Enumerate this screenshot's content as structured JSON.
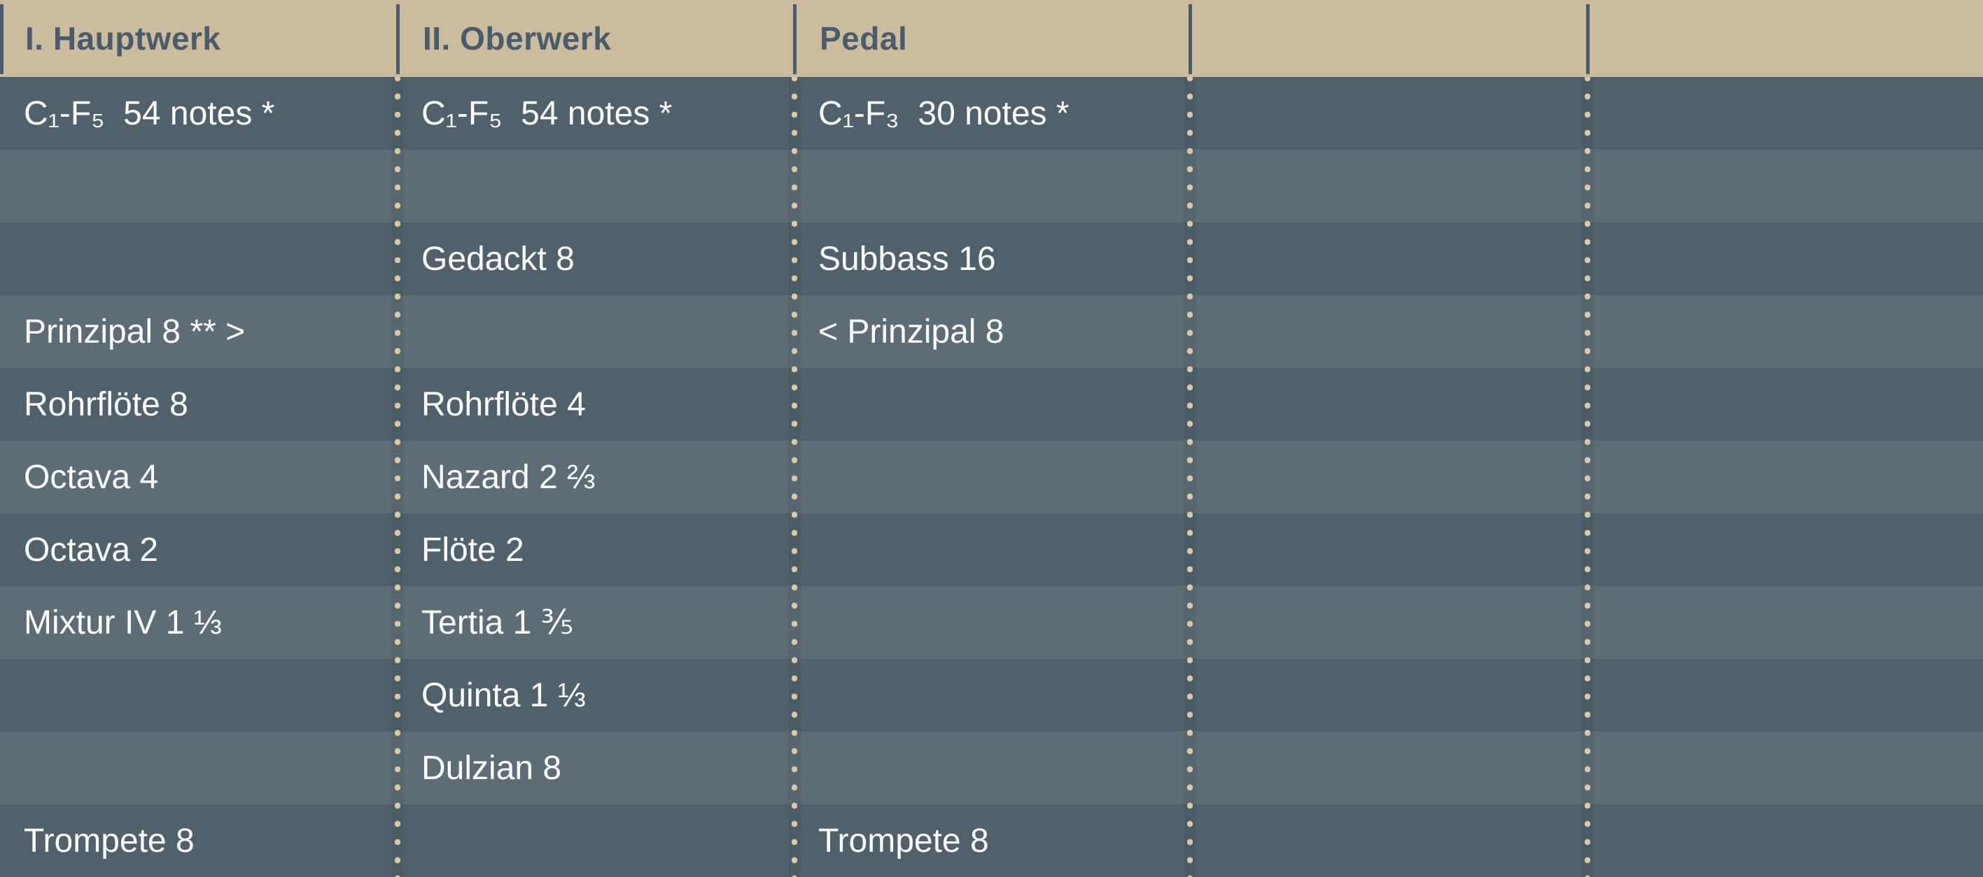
{
  "colors": {
    "header_background": "#cbbc9e",
    "header_text": "#4a5c6b",
    "row_dark": "#51616b",
    "row_light": "#5d6c75",
    "separator_dot": "#d9c8a6",
    "body_text": "#ffffff"
  },
  "table": {
    "columns": [
      {
        "label": "I. Hauptwerk"
      },
      {
        "label": "II. Oberwerk"
      },
      {
        "label": "Pedal"
      },
      {
        "label": ""
      },
      {
        "label": ""
      }
    ],
    "rows": [
      {
        "cells": [
          "C₁-F₅  54 notes *",
          "C₁-F₅  54 notes *",
          "C₁-F₃  30 notes *",
          "",
          ""
        ]
      },
      {
        "cells": [
          "",
          "",
          "",
          "",
          ""
        ]
      },
      {
        "cells": [
          "",
          "Gedackt 8",
          "Subbass 16",
          "",
          ""
        ]
      },
      {
        "cells": [
          "Prinzipal 8 ** >",
          "",
          "< Prinzipal 8",
          "",
          ""
        ]
      },
      {
        "cells": [
          "Rohrflöte 8",
          "Rohrflöte 4",
          "",
          "",
          ""
        ]
      },
      {
        "cells": [
          "Octava 4",
          "Nazard 2 ⅔",
          "",
          "",
          ""
        ]
      },
      {
        "cells": [
          "Octava 2",
          "Flöte 2",
          "",
          "",
          ""
        ]
      },
      {
        "cells": [
          "Mixtur IV 1 ⅓",
          "Tertia 1 ⅗",
          "",
          "",
          ""
        ]
      },
      {
        "cells": [
          "",
          "Quinta 1 ⅓",
          "",
          "",
          ""
        ]
      },
      {
        "cells": [
          "",
          "Dulzian 8",
          "",
          "",
          ""
        ]
      },
      {
        "cells": [
          "Trompete 8",
          "",
          "Trompete 8",
          "",
          ""
        ]
      }
    ]
  }
}
